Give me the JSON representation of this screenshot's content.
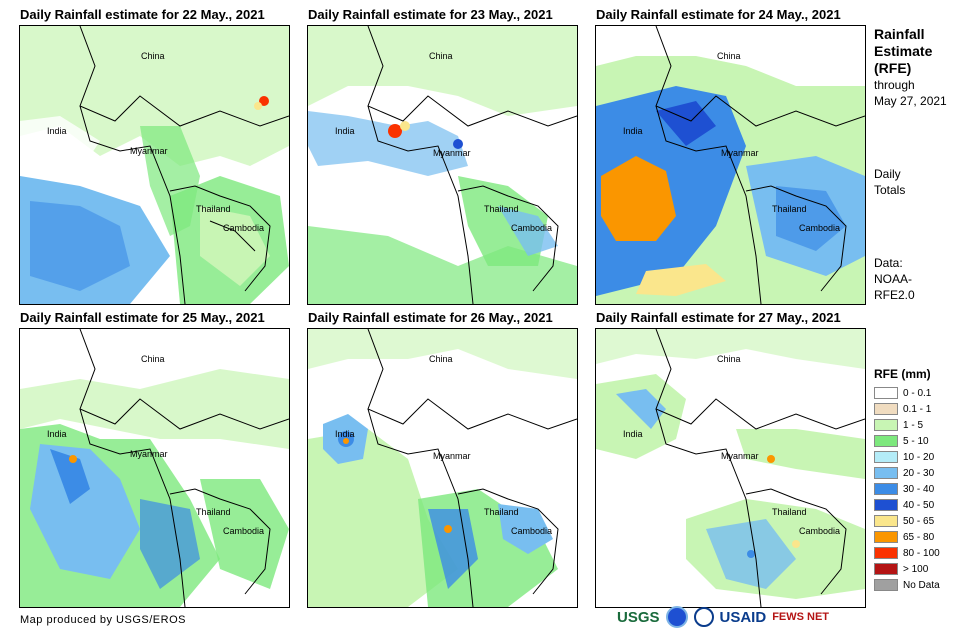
{
  "panels": [
    {
      "title": "Daily Rainfall estimate for 22 May., 2021",
      "labels": {
        "china": "China",
        "india": "India",
        "myanmar": "Myanmar",
        "thailand": "Thailand",
        "cambodia": "Cambodia"
      }
    },
    {
      "title": "Daily Rainfall estimate for 23 May., 2021",
      "labels": {
        "china": "China",
        "india": "India",
        "myanmar": "Myanmar",
        "thailand": "Thailand",
        "cambodia": "Cambodia"
      }
    },
    {
      "title": "Daily Rainfall estimate for 24 May., 2021",
      "labels": {
        "china": "China",
        "india": "India",
        "myanmar": "Myanmar",
        "thailand": "Thailand",
        "cambodia": "Cambodia"
      }
    },
    {
      "title": "Daily Rainfall estimate for 25 May., 2021",
      "labels": {
        "china": "China",
        "india": "India",
        "myanmar": "Myanmar",
        "thailand": "Thailand",
        "cambodia": "Cambodia"
      }
    },
    {
      "title": "Daily Rainfall estimate for 26 May., 2021",
      "labels": {
        "china": "China",
        "india": "India",
        "myanmar": "Myanmar",
        "thailand": "Thailand",
        "cambodia": "Cambodia"
      }
    },
    {
      "title": "Daily Rainfall estimate for 27 May., 2021",
      "labels": {
        "china": "China",
        "india": "India",
        "myanmar": "Myanmar",
        "thailand": "Thailand",
        "cambodia": "Cambodia"
      }
    }
  ],
  "side": {
    "title_line1": "Rainfall",
    "title_line2": "Estimate",
    "title_line3": "(RFE)",
    "through": "through",
    "through_date": "May 27, 2021",
    "daily": "Daily",
    "totals": "Totals",
    "data_label": "Data:",
    "data_src1": "NOAA-",
    "data_src2": "RFE2.0"
  },
  "legend": {
    "title": "RFE (mm)",
    "items": [
      {
        "label": "0 - 0.1",
        "color": "#ffffff"
      },
      {
        "label": "0.1 - 1",
        "color": "#f0dcc0"
      },
      {
        "label": "1 - 5",
        "color": "#c8f5b4"
      },
      {
        "label": "5 - 10",
        "color": "#7de87d"
      },
      {
        "label": "10 - 20",
        "color": "#b4ecf8"
      },
      {
        "label": "20 - 30",
        "color": "#78bef0"
      },
      {
        "label": "30 - 40",
        "color": "#3c8ce6"
      },
      {
        "label": "40 - 50",
        "color": "#1e50d2"
      },
      {
        "label": "50 - 65",
        "color": "#fae68c"
      },
      {
        "label": "65 - 80",
        "color": "#fa9600"
      },
      {
        "label": "80 - 100",
        "color": "#fa3200"
      },
      {
        "label": "> 100",
        "color": "#b41414"
      },
      {
        "label": "No Data",
        "color": "#a0a0a0"
      }
    ]
  },
  "credit": "Map produced by USGS/EROS",
  "logos": {
    "usgs": "USGS",
    "usaid": "USAID",
    "fewsnet": "FEWS NET"
  }
}
